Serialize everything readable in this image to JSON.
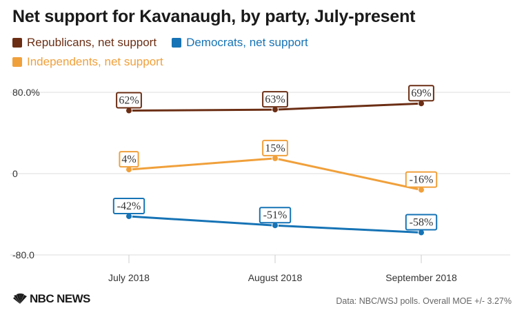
{
  "chart_data": {
    "type": "line",
    "title": "Net support for Kavanaugh, by party, July-present",
    "categories": [
      "July 2018",
      "August 2018",
      "September 2018"
    ],
    "series": [
      {
        "name": "Republicans, net support",
        "color": "#6b2e14",
        "values": [
          62,
          63,
          69
        ],
        "labels": [
          "62%",
          "63%",
          "69%"
        ]
      },
      {
        "name": "Democrats, net support",
        "color": "#1673b5",
        "values": [
          -42,
          -51,
          -58
        ],
        "labels": [
          "-42%",
          "-51%",
          "-58%"
        ]
      },
      {
        "name": "Independents, net support",
        "color": "#f0a03b",
        "values": [
          4,
          15,
          -16
        ],
        "labels": [
          "4%",
          "15%",
          "-16%"
        ]
      }
    ],
    "yticks": [
      "80.0%",
      "0",
      "-80.0"
    ],
    "ytick_values": [
      80,
      0,
      -80
    ],
    "ylim": [
      -80,
      80
    ],
    "xlabel": "",
    "ylabel": "",
    "grid": true,
    "legend": "top-left"
  },
  "brand": {
    "name": "NBC NEWS"
  },
  "source": "Data: NBC/WSJ polls. Overall MOE +/- 3.27%"
}
